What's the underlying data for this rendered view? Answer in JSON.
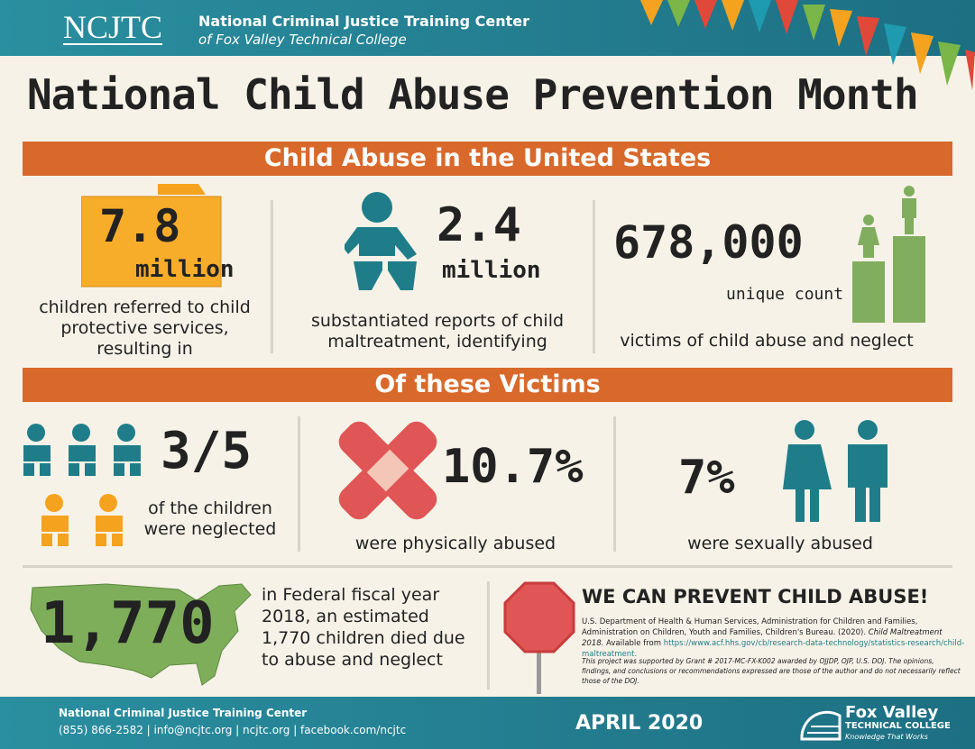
{
  "header": {
    "logo": "NCJTC",
    "org_name": "National Criminal Justice Training Center",
    "org_sub": "of Fox Valley Technical College"
  },
  "title": "National Child Abuse Prevention Month",
  "section1": {
    "heading": "Child Abuse in the United States",
    "stats": [
      {
        "figure": "7.8",
        "unit": "million",
        "text": "children referred to child protective services, resulting in"
      },
      {
        "figure": "2.4",
        "unit": "million",
        "text": "substantiated reports of child maltreatment, identifying"
      },
      {
        "figure": "678,000",
        "unit": "unique count",
        "text": "victims of child abuse and neglect"
      }
    ]
  },
  "section2": {
    "heading": "Of these Victims",
    "stats": [
      {
        "figure": "3/5",
        "text": "of the children were neglected"
      },
      {
        "figure": "10.7%",
        "text": "were physically abused"
      },
      {
        "figure": "7%",
        "text": "were sexually abused"
      }
    ]
  },
  "deaths": {
    "figure": "1,770",
    "text": "in Federal fiscal year 2018, an estimated 1,770 children died due to abuse and neglect"
  },
  "prevent": {
    "heading": "WE CAN PREVENT CHILD ABUSE!",
    "citation": {
      "source": "U.S. Department of Health & Human Services, Administration for Children and Families, Administration on Children, Youth and Families, Children's Bureau. (2020).",
      "publication": "Child Maltreatment 2018.",
      "available": "Available from",
      "url": "https://www.acf.hhs.gov/cb/research-data-technology/statistics-research/child-maltreatment."
    },
    "support_note": "This project was supported by Grant # 2017-MC-FX-K002 awarded by OJJDP, OJP, U.S. DOJ. The opinions, findings, and conclusions or recommendations expressed are those of the author and do not necessarily reflect those of the DOJ."
  },
  "footer": {
    "org_name": "National Criminal Justice Training Center",
    "contact": "(855) 866-2582 | info@ncjtc.org | ncjtc.org | facebook.com/ncjtc",
    "date": "APRIL 2020",
    "college_name": "Fox Valley",
    "college_sub": "TECHNICAL COLLEGE",
    "college_tagline": "Knowledge That Works"
  }
}
